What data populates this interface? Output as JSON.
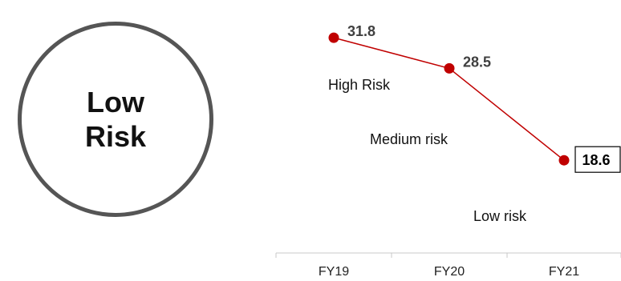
{
  "risk_badge": {
    "line1": "Low",
    "line2": "Risk"
  },
  "colors": {
    "line": "#c00000",
    "marker": "#c00000",
    "axis": "#c8c8c8",
    "badge_border": "#555555"
  },
  "chart_data": {
    "type": "line",
    "categories": [
      "FY19",
      "FY20",
      "FY21"
    ],
    "values": [
      31.8,
      28.5,
      18.6
    ],
    "value_labels": [
      "31.8",
      "28.5",
      "18.6"
    ],
    "highlighted_index": 2,
    "zone_labels": [
      "High Risk",
      "Medium risk",
      "Low risk"
    ],
    "ylim": [
      10,
      35
    ],
    "grid": false
  }
}
